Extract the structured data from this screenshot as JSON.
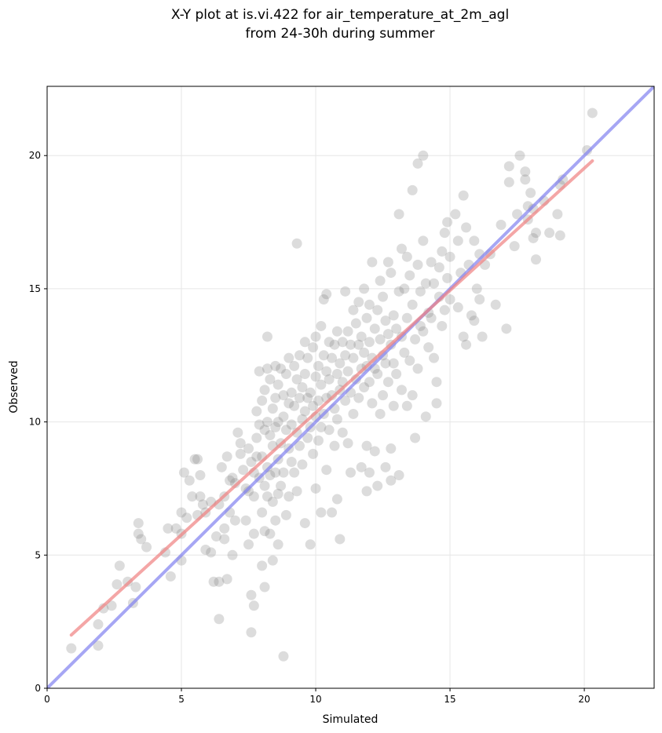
{
  "chart_data": {
    "type": "scatter",
    "title_lines": [
      "X-Y plot at is.vi.422 for air_temperature_at_2m_agl",
      "from 24-30h during summer"
    ],
    "xlabel": "Simulated",
    "ylabel": "Observed",
    "xlim": [
      0,
      22.6
    ],
    "ylim": [
      0,
      22.6
    ],
    "x_ticks": [
      0,
      5,
      10,
      15,
      20
    ],
    "y_ticks": [
      0,
      5,
      10,
      15,
      20
    ],
    "grid": true,
    "colors": {
      "points": "#808080",
      "fit_line": "#f08080",
      "one_to_one_line": "#8080f0"
    },
    "fit_line": {
      "x": [
        0.9,
        20.3
      ],
      "y": [
        2.0,
        19.8
      ]
    },
    "one_to_one_line": {
      "x": [
        0,
        22.6
      ],
      "y": [
        0,
        22.6
      ]
    },
    "points": [
      [
        0.9,
        1.5
      ],
      [
        1.9,
        1.6
      ],
      [
        1.9,
        2.4
      ],
      [
        2.1,
        3.0
      ],
      [
        2.4,
        3.1
      ],
      [
        2.6,
        3.9
      ],
      [
        2.7,
        4.6
      ],
      [
        3.0,
        4.0
      ],
      [
        3.3,
        3.8
      ],
      [
        3.2,
        3.2
      ],
      [
        3.4,
        5.8
      ],
      [
        3.4,
        6.2
      ],
      [
        3.5,
        5.6
      ],
      [
        3.7,
        5.3
      ],
      [
        4.4,
        5.1
      ],
      [
        4.5,
        6.0
      ],
      [
        4.6,
        4.2
      ],
      [
        4.8,
        6.0
      ],
      [
        5.0,
        4.8
      ],
      [
        5.0,
        5.8
      ],
      [
        5.0,
        6.6
      ],
      [
        5.1,
        8.1
      ],
      [
        5.3,
        7.8
      ],
      [
        5.2,
        6.4
      ],
      [
        5.4,
        7.2
      ],
      [
        5.5,
        8.6
      ],
      [
        5.6,
        8.6
      ],
      [
        5.6,
        6.5
      ],
      [
        5.7,
        7.2
      ],
      [
        5.7,
        8.0
      ],
      [
        5.8,
        6.9
      ],
      [
        5.9,
        6.6
      ],
      [
        5.9,
        5.2
      ],
      [
        6.1,
        5.1
      ],
      [
        6.1,
        7.0
      ],
      [
        6.2,
        4.0
      ],
      [
        6.3,
        5.7
      ],
      [
        6.4,
        6.9
      ],
      [
        6.4,
        4.0
      ],
      [
        6.4,
        2.6
      ],
      [
        6.5,
        8.3
      ],
      [
        6.6,
        7.2
      ],
      [
        6.6,
        6.0
      ],
      [
        6.6,
        5.6
      ],
      [
        6.7,
        8.7
      ],
      [
        6.7,
        4.1
      ],
      [
        6.8,
        7.8
      ],
      [
        6.8,
        6.6
      ],
      [
        6.9,
        7.9
      ],
      [
        6.9,
        5.0
      ],
      [
        7.0,
        7.7
      ],
      [
        7.0,
        6.3
      ],
      [
        7.1,
        9.6
      ],
      [
        7.2,
        8.8
      ],
      [
        7.2,
        9.2
      ],
      [
        7.3,
        8.2
      ],
      [
        7.4,
        7.5
      ],
      [
        7.4,
        6.3
      ],
      [
        7.5,
        9.0
      ],
      [
        7.5,
        7.4
      ],
      [
        7.5,
        5.4
      ],
      [
        7.6,
        8.5
      ],
      [
        7.6,
        3.5
      ],
      [
        7.6,
        2.1
      ],
      [
        7.7,
        8.1
      ],
      [
        7.7,
        7.2
      ],
      [
        7.7,
        5.8
      ],
      [
        7.7,
        3.1
      ],
      [
        7.8,
        9.4
      ],
      [
        7.8,
        8.7
      ],
      [
        7.8,
        10.4
      ],
      [
        7.9,
        11.9
      ],
      [
        7.9,
        9.9
      ],
      [
        7.9,
        7.9
      ],
      [
        8.0,
        10.8
      ],
      [
        8.0,
        8.7
      ],
      [
        8.0,
        6.6
      ],
      [
        8.0,
        4.6
      ],
      [
        8.1,
        11.2
      ],
      [
        8.1,
        9.7
      ],
      [
        8.1,
        7.6
      ],
      [
        8.1,
        5.9
      ],
      [
        8.1,
        3.8
      ],
      [
        8.2,
        13.2
      ],
      [
        8.2,
        12.0
      ],
      [
        8.2,
        10.0
      ],
      [
        8.2,
        8.3
      ],
      [
        8.2,
        7.2
      ],
      [
        8.3,
        11.6
      ],
      [
        8.3,
        9.5
      ],
      [
        8.3,
        8.0
      ],
      [
        8.3,
        5.8
      ],
      [
        8.4,
        10.5
      ],
      [
        8.4,
        9.1
      ],
      [
        8.4,
        7.0
      ],
      [
        8.4,
        4.8
      ],
      [
        8.5,
        12.1
      ],
      [
        8.5,
        10.9
      ],
      [
        8.5,
        9.8
      ],
      [
        8.5,
        8.1
      ],
      [
        8.5,
        6.3
      ],
      [
        8.6,
        11.4
      ],
      [
        8.6,
        10.0
      ],
      [
        8.6,
        8.6
      ],
      [
        8.6,
        7.3
      ],
      [
        8.6,
        5.4
      ],
      [
        8.7,
        12.0
      ],
      [
        8.7,
        9.2
      ],
      [
        8.7,
        7.6
      ],
      [
        8.8,
        11.0
      ],
      [
        8.8,
        10.2
      ],
      [
        8.8,
        8.1
      ],
      [
        8.8,
        1.2
      ],
      [
        8.9,
        11.8
      ],
      [
        8.9,
        9.7
      ],
      [
        8.9,
        6.5
      ],
      [
        9.0,
        12.4
      ],
      [
        9.0,
        10.7
      ],
      [
        9.0,
        9.0
      ],
      [
        9.0,
        7.2
      ],
      [
        9.1,
        11.1
      ],
      [
        9.1,
        9.9
      ],
      [
        9.1,
        8.5
      ],
      [
        9.2,
        12.1
      ],
      [
        9.2,
        10.6
      ],
      [
        9.2,
        8.1
      ],
      [
        9.3,
        16.7
      ],
      [
        9.3,
        11.6
      ],
      [
        9.3,
        9.6
      ],
      [
        9.3,
        7.4
      ],
      [
        9.4,
        12.5
      ],
      [
        9.4,
        10.9
      ],
      [
        9.4,
        9.1
      ],
      [
        9.5,
        11.3
      ],
      [
        9.5,
        10.1
      ],
      [
        9.5,
        8.4
      ],
      [
        9.6,
        13.0
      ],
      [
        9.6,
        11.8
      ],
      [
        9.6,
        10.4
      ],
      [
        9.6,
        6.2
      ],
      [
        9.7,
        12.4
      ],
      [
        9.7,
        10.9
      ],
      [
        9.7,
        9.4
      ],
      [
        9.8,
        11.1
      ],
      [
        9.8,
        9.8
      ],
      [
        9.8,
        5.4
      ],
      [
        9.9,
        12.8
      ],
      [
        9.9,
        10.6
      ],
      [
        9.9,
        8.8
      ],
      [
        10.0,
        13.2
      ],
      [
        10.0,
        11.7
      ],
      [
        10.0,
        10.2
      ],
      [
        10.0,
        7.5
      ],
      [
        10.1,
        12.1
      ],
      [
        10.1,
        10.8
      ],
      [
        10.1,
        9.3
      ],
      [
        10.2,
        13.6
      ],
      [
        10.2,
        11.4
      ],
      [
        10.2,
        9.8
      ],
      [
        10.2,
        6.6
      ],
      [
        10.3,
        14.6
      ],
      [
        10.3,
        12.5
      ],
      [
        10.3,
        10.3
      ],
      [
        10.4,
        14.8
      ],
      [
        10.4,
        11.9
      ],
      [
        10.4,
        10.9
      ],
      [
        10.4,
        8.2
      ],
      [
        10.5,
        13.0
      ],
      [
        10.5,
        11.6
      ],
      [
        10.5,
        9.7
      ],
      [
        10.6,
        12.4
      ],
      [
        10.6,
        11.0
      ],
      [
        10.6,
        6.6
      ],
      [
        10.7,
        12.9
      ],
      [
        10.7,
        10.5
      ],
      [
        10.7,
        9.1
      ],
      [
        10.8,
        13.4
      ],
      [
        10.8,
        11.8
      ],
      [
        10.8,
        10.1
      ],
      [
        10.8,
        7.1
      ],
      [
        10.9,
        12.2
      ],
      [
        10.9,
        11.2
      ],
      [
        10.9,
        5.6
      ],
      [
        11.0,
        13.0
      ],
      [
        11.0,
        11.5
      ],
      [
        11.0,
        9.6
      ],
      [
        11.1,
        14.9
      ],
      [
        11.1,
        12.5
      ],
      [
        11.1,
        10.8
      ],
      [
        11.2,
        13.4
      ],
      [
        11.2,
        11.9
      ],
      [
        11.2,
        9.2
      ],
      [
        11.3,
        12.9
      ],
      [
        11.3,
        11.1
      ],
      [
        11.3,
        8.1
      ],
      [
        11.4,
        14.2
      ],
      [
        11.4,
        12.4
      ],
      [
        11.4,
        10.3
      ],
      [
        11.5,
        13.7
      ],
      [
        11.5,
        11.6
      ],
      [
        11.6,
        14.5
      ],
      [
        11.6,
        12.9
      ],
      [
        11.6,
        10.9
      ],
      [
        11.7,
        13.2
      ],
      [
        11.7,
        12.0
      ],
      [
        11.7,
        8.3
      ],
      [
        11.8,
        15.0
      ],
      [
        11.8,
        12.6
      ],
      [
        11.8,
        11.3
      ],
      [
        11.9,
        13.9
      ],
      [
        11.9,
        12.1
      ],
      [
        11.9,
        9.1
      ],
      [
        11.9,
        7.4
      ],
      [
        12.0,
        14.4
      ],
      [
        12.0,
        13.0
      ],
      [
        12.0,
        11.5
      ],
      [
        12.0,
        8.1
      ],
      [
        12.1,
        16.0
      ],
      [
        12.1,
        12.4
      ],
      [
        12.1,
        10.7
      ],
      [
        12.2,
        13.5
      ],
      [
        12.2,
        12.0
      ],
      [
        12.2,
        8.9
      ],
      [
        12.3,
        14.2
      ],
      [
        12.3,
        11.8
      ],
      [
        12.3,
        7.6
      ],
      [
        12.4,
        15.3
      ],
      [
        12.4,
        13.1
      ],
      [
        12.4,
        10.3
      ],
      [
        12.5,
        14.7
      ],
      [
        12.5,
        12.5
      ],
      [
        12.5,
        11.0
      ],
      [
        12.6,
        13.8
      ],
      [
        12.6,
        12.2
      ],
      [
        12.6,
        8.3
      ],
      [
        12.7,
        16.0
      ],
      [
        12.7,
        13.3
      ],
      [
        12.7,
        11.5
      ],
      [
        12.8,
        15.6
      ],
      [
        12.8,
        12.9
      ],
      [
        12.8,
        9.0
      ],
      [
        12.8,
        7.8
      ],
      [
        12.9,
        14.0
      ],
      [
        12.9,
        12.2
      ],
      [
        12.9,
        10.6
      ],
      [
        13.0,
        13.5
      ],
      [
        13.0,
        11.8
      ],
      [
        13.1,
        17.8
      ],
      [
        13.1,
        14.9
      ],
      [
        13.1,
        8.0
      ],
      [
        13.2,
        16.5
      ],
      [
        13.2,
        13.2
      ],
      [
        13.2,
        11.2
      ],
      [
        13.3,
        15.0
      ],
      [
        13.3,
        12.6
      ],
      [
        13.4,
        16.2
      ],
      [
        13.4,
        13.9
      ],
      [
        13.4,
        10.6
      ],
      [
        13.5,
        15.5
      ],
      [
        13.5,
        12.3
      ],
      [
        13.6,
        18.7
      ],
      [
        13.6,
        14.4
      ],
      [
        13.6,
        11.0
      ],
      [
        13.7,
        9.4
      ],
      [
        13.7,
        13.1
      ],
      [
        13.8,
        19.7
      ],
      [
        13.8,
        15.9
      ],
      [
        13.8,
        12.0
      ],
      [
        13.9,
        14.9
      ],
      [
        13.9,
        13.6
      ],
      [
        14.0,
        20.0
      ],
      [
        14.0,
        16.8
      ],
      [
        14.0,
        13.4
      ],
      [
        14.1,
        15.2
      ],
      [
        14.1,
        10.2
      ],
      [
        14.2,
        14.1
      ],
      [
        14.2,
        12.8
      ],
      [
        14.3,
        13.9
      ],
      [
        14.3,
        16.0
      ],
      [
        14.4,
        15.2
      ],
      [
        14.4,
        12.4
      ],
      [
        14.5,
        11.5
      ],
      [
        14.5,
        10.7
      ],
      [
        14.6,
        14.7
      ],
      [
        14.6,
        15.8
      ],
      [
        14.7,
        16.4
      ],
      [
        14.7,
        13.6
      ],
      [
        14.8,
        17.1
      ],
      [
        14.8,
        14.2
      ],
      [
        14.9,
        17.5
      ],
      [
        14.9,
        15.4
      ],
      [
        15.0,
        16.2
      ],
      [
        15.0,
        14.6
      ],
      [
        15.2,
        17.8
      ],
      [
        15.3,
        16.8
      ],
      [
        15.3,
        14.3
      ],
      [
        15.4,
        15.6
      ],
      [
        15.5,
        18.5
      ],
      [
        15.5,
        13.2
      ],
      [
        15.6,
        17.3
      ],
      [
        15.6,
        12.9
      ],
      [
        15.7,
        15.9
      ],
      [
        15.8,
        14.0
      ],
      [
        15.9,
        16.8
      ],
      [
        15.9,
        13.8
      ],
      [
        16.0,
        15.0
      ],
      [
        16.1,
        16.3
      ],
      [
        16.1,
        14.6
      ],
      [
        16.2,
        13.2
      ],
      [
        16.3,
        15.9
      ],
      [
        16.5,
        16.3
      ],
      [
        16.7,
        14.4
      ],
      [
        16.9,
        17.4
      ],
      [
        17.1,
        13.5
      ],
      [
        17.2,
        19.6
      ],
      [
        17.2,
        19.0
      ],
      [
        17.4,
        16.6
      ],
      [
        17.5,
        17.8
      ],
      [
        17.6,
        20.0
      ],
      [
        17.8,
        19.4
      ],
      [
        17.8,
        19.1
      ],
      [
        17.9,
        18.1
      ],
      [
        17.9,
        17.6
      ],
      [
        18.0,
        18.6
      ],
      [
        18.1,
        18.0
      ],
      [
        18.1,
        16.9
      ],
      [
        18.2,
        17.1
      ],
      [
        18.2,
        16.1
      ],
      [
        18.5,
        18.3
      ],
      [
        18.7,
        17.1
      ],
      [
        19.0,
        17.8
      ],
      [
        19.1,
        18.9
      ],
      [
        19.1,
        17.0
      ],
      [
        19.2,
        19.1
      ],
      [
        20.1,
        20.2
      ],
      [
        20.3,
        21.6
      ]
    ]
  }
}
